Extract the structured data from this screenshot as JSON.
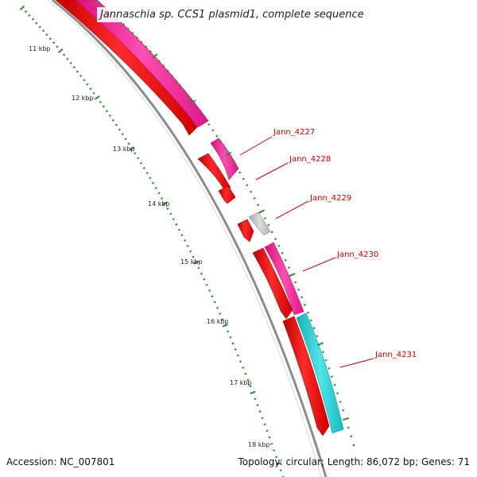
{
  "title": "Jannaschia sp. CCS1 plasmid1, complete sequence",
  "footer": {
    "accession": "Accession: NC_007801",
    "topology": "Topology: circular;",
    "length": "Length: 86,072 bp;",
    "genes": "Genes: 71"
  },
  "colors": {
    "backbone": "#8c8c8c",
    "forward_cds": "#ff1493",
    "reverse_cds": "#ff0000",
    "cyan_feature": "#18c8cc",
    "grey_feature": "#bdbdbd",
    "ticks": "#2e8b2e",
    "gene_label": "#cc0000"
  },
  "kbp_labels": [
    "11 kbp",
    "12 kbp",
    "13 kbp",
    "14 kbp",
    "15 kbp",
    "16 kbp",
    "17 kbp",
    "18 kbp"
  ],
  "gene_labels": [
    "Jann_4227",
    "Jann_4228",
    "Jann_4229",
    "Jann_4230",
    "Jann_4231"
  ]
}
